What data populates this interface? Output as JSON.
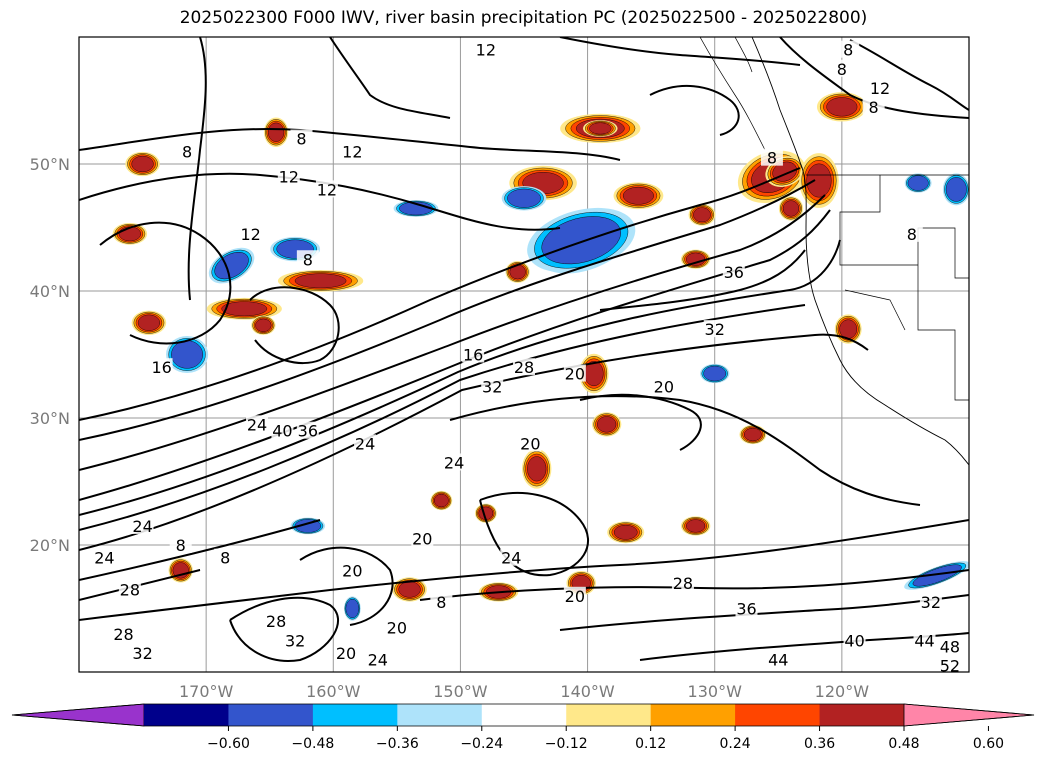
{
  "title": "2025022300 F000 IWV, river basin precipitation PC (2025022500 - 2025022800)",
  "map": {
    "lat_labels": [
      "50°N",
      "40°N",
      "30°N",
      "20°N"
    ],
    "lon_labels": [
      "170°W",
      "160°W",
      "150°W",
      "140°W",
      "130°W",
      "120°W"
    ],
    "projection_extent": {
      "lon": [
        -180,
        -110
      ],
      "lat": [
        10,
        60
      ]
    },
    "gridlines": true,
    "contour_variable": "IWV",
    "contour_labels": [
      {
        "text": "12",
        "lon": -148,
        "lat": 59
      },
      {
        "text": "8",
        "lon": -119.5,
        "lat": 59
      },
      {
        "text": "8",
        "lon": -120,
        "lat": 57.5
      },
      {
        "text": "12",
        "lon": -117,
        "lat": 56
      },
      {
        "text": "8",
        "lon": -117.5,
        "lat": 54.5
      },
      {
        "text": "8",
        "lon": -162.5,
        "lat": 52
      },
      {
        "text": "8",
        "lon": -171.5,
        "lat": 51
      },
      {
        "text": "12",
        "lon": -158.5,
        "lat": 51
      },
      {
        "text": "12",
        "lon": -163.5,
        "lat": 49
      },
      {
        "text": "12",
        "lon": -160.5,
        "lat": 48
      },
      {
        "text": "12",
        "lon": -166.5,
        "lat": 44.5
      },
      {
        "text": "8",
        "lon": -162,
        "lat": 42.5
      },
      {
        "text": "8",
        "lon": -125.5,
        "lat": 50.5
      },
      {
        "text": "8",
        "lon": -114.5,
        "lat": 44.5
      },
      {
        "text": "36",
        "lon": -128.5,
        "lat": 41.5
      },
      {
        "text": "32",
        "lon": -130,
        "lat": 37
      },
      {
        "text": "16",
        "lon": -173.5,
        "lat": 34
      },
      {
        "text": "16",
        "lon": -149,
        "lat": 35
      },
      {
        "text": "28",
        "lon": -145,
        "lat": 34
      },
      {
        "text": "32",
        "lon": -147.5,
        "lat": 32.5
      },
      {
        "text": "20",
        "lon": -141,
        "lat": 33.5
      },
      {
        "text": "20",
        "lon": -134,
        "lat": 32.5
      },
      {
        "text": "24",
        "lon": -166,
        "lat": 29.5
      },
      {
        "text": "40",
        "lon": -164,
        "lat": 29
      },
      {
        "text": "36",
        "lon": -162,
        "lat": 29
      },
      {
        "text": "24",
        "lon": -157.5,
        "lat": 28
      },
      {
        "text": "20",
        "lon": -144.5,
        "lat": 28
      },
      {
        "text": "24",
        "lon": -150.5,
        "lat": 26.5
      },
      {
        "text": "24",
        "lon": -175,
        "lat": 21.5
      },
      {
        "text": "8",
        "lon": -172,
        "lat": 20
      },
      {
        "text": "8",
        "lon": -168.5,
        "lat": 19
      },
      {
        "text": "20",
        "lon": -153,
        "lat": 20.5
      },
      {
        "text": "24",
        "lon": -146,
        "lat": 19
      },
      {
        "text": "20",
        "lon": -158.5,
        "lat": 18
      },
      {
        "text": "24",
        "lon": -178,
        "lat": 19
      },
      {
        "text": "28",
        "lon": -176,
        "lat": 16.5
      },
      {
        "text": "28",
        "lon": -132.5,
        "lat": 17
      },
      {
        "text": "36",
        "lon": -127.5,
        "lat": 15
      },
      {
        "text": "32",
        "lon": -113,
        "lat": 15.5
      },
      {
        "text": "20",
        "lon": -141,
        "lat": 16
      },
      {
        "text": "8",
        "lon": -151.5,
        "lat": 15.5
      },
      {
        "text": "28",
        "lon": -176.5,
        "lat": 13
      },
      {
        "text": "28",
        "lon": -164.5,
        "lat": 14
      },
      {
        "text": "32",
        "lon": -175,
        "lat": 11.5
      },
      {
        "text": "32",
        "lon": -163,
        "lat": 12.5
      },
      {
        "text": "20",
        "lon": -155,
        "lat": 13.5
      },
      {
        "text": "20",
        "lon": -159,
        "lat": 11.5
      },
      {
        "text": "24",
        "lon": -156.5,
        "lat": 11
      },
      {
        "text": "40",
        "lon": -119,
        "lat": 12.5
      },
      {
        "text": "44",
        "lon": -113.5,
        "lat": 12.5
      },
      {
        "text": "48",
        "lon": -111.5,
        "lat": 12
      },
      {
        "text": "52",
        "lon": -111.5,
        "lat": 10.5
      },
      {
        "text": "44",
        "lon": -125,
        "lat": 11
      }
    ]
  },
  "colorbar": {
    "colors": [
      "#9933cc",
      "#00008b",
      "#3355cc",
      "#00bfff",
      "#aee3fa",
      "#ffffff",
      "#ffe88a",
      "#ffa000",
      "#ff4500",
      "#b22222",
      "#ff85a8"
    ],
    "tick_labels": [
      "−0.60",
      "−0.48",
      "−0.36",
      "−0.24",
      "−0.12",
      "0.12",
      "0.24",
      "0.36",
      "0.48",
      "0.60"
    ],
    "extend": "both"
  },
  "patches": [
    {
      "lon": -140.5,
      "lat": 43.3,
      "rx": 3.3,
      "ry": 1.6,
      "rot": -15,
      "sign": "neg",
      "level": 3
    },
    {
      "lon": -140.8,
      "lat": 43.0,
      "rx": 2.0,
      "ry": 0.9,
      "rot": -15,
      "sign": "neg",
      "level": 4
    },
    {
      "lon": -140.5,
      "lat": 44.0,
      "rx": 4.2,
      "ry": 2.2,
      "rot": -15,
      "sign": "neg",
      "level": 2
    },
    {
      "lon": -125.5,
      "lat": 49.0,
      "rx": 2.6,
      "ry": 1.8,
      "rot": -20,
      "sign": "pos",
      "level": 3
    },
    {
      "lon": -124.5,
      "lat": 49.4,
      "rx": 1.4,
      "ry": 1.0,
      "rot": -20,
      "sign": "pos",
      "level": 4
    },
    {
      "lon": -121.8,
      "lat": 48.7,
      "rx": 1.4,
      "ry": 2.0,
      "rot": 0,
      "sign": "pos",
      "level": 3
    },
    {
      "lon": -143.5,
      "lat": 48.5,
      "rx": 2.5,
      "ry": 1.2,
      "rot": 0,
      "sign": "pos",
      "level": 3
    },
    {
      "lon": -139.0,
      "lat": 52.8,
      "rx": 3.0,
      "ry": 1.0,
      "rot": 0,
      "sign": "pos",
      "level": 3
    },
    {
      "lon": -139.0,
      "lat": 52.8,
      "rx": 1.2,
      "ry": 0.5,
      "rot": 0,
      "sign": "pos",
      "level": 4
    },
    {
      "lon": -167.0,
      "lat": 38.6,
      "rx": 2.8,
      "ry": 0.7,
      "rot": 0,
      "sign": "pos",
      "level": 3
    },
    {
      "lon": -161.0,
      "lat": 40.8,
      "rx": 3.2,
      "ry": 0.7,
      "rot": 0,
      "sign": "pos",
      "level": 3
    },
    {
      "lon": -174.5,
      "lat": 37.5,
      "rx": 1.2,
      "ry": 0.8,
      "rot": 0,
      "sign": "pos",
      "level": 3
    },
    {
      "lon": -136.0,
      "lat": 47.5,
      "rx": 1.8,
      "ry": 0.9,
      "rot": 0,
      "sign": "pos",
      "level": 3
    },
    {
      "lon": -145.0,
      "lat": 47.3,
      "rx": 1.6,
      "ry": 0.8,
      "rot": 0,
      "sign": "neg",
      "level": 2
    },
    {
      "lon": -139.5,
      "lat": 33.5,
      "rx": 1.0,
      "ry": 1.4,
      "rot": 0,
      "sign": "pos",
      "level": 3
    },
    {
      "lon": -137.0,
      "lat": 21.0,
      "rx": 1.3,
      "ry": 0.7,
      "rot": 0,
      "sign": "pos",
      "level": 3
    },
    {
      "lon": -154.0,
      "lat": 16.5,
      "rx": 1.2,
      "ry": 0.8,
      "rot": 0,
      "sign": "pos",
      "level": 3
    },
    {
      "lon": -147.0,
      "lat": 16.3,
      "rx": 1.4,
      "ry": 0.6,
      "rot": 0,
      "sign": "pos",
      "level": 3
    },
    {
      "lon": -140.5,
      "lat": 17.0,
      "rx": 1.0,
      "ry": 0.8,
      "rot": 0,
      "sign": "pos",
      "level": 3
    },
    {
      "lon": -144.0,
      "lat": 26.0,
      "rx": 1.0,
      "ry": 1.4,
      "rot": 0,
      "sign": "pos",
      "level": 3
    },
    {
      "lon": -138.5,
      "lat": 29.5,
      "rx": 1.0,
      "ry": 0.8,
      "rot": 0,
      "sign": "pos",
      "level": 3
    },
    {
      "lon": -119.5,
      "lat": 37.0,
      "rx": 0.9,
      "ry": 1.0,
      "rot": 0,
      "sign": "pos",
      "level": 3
    },
    {
      "lon": -120.0,
      "lat": 54.5,
      "rx": 1.8,
      "ry": 1.0,
      "rot": 0,
      "sign": "pos",
      "level": 4
    },
    {
      "lon": -171.5,
      "lat": 35.0,
      "rx": 1.5,
      "ry": 1.3,
      "rot": 0,
      "sign": "neg",
      "level": 2
    },
    {
      "lon": -163.0,
      "lat": 43.3,
      "rx": 1.8,
      "ry": 0.8,
      "rot": 0,
      "sign": "neg",
      "level": 2
    },
    {
      "lon": -112.5,
      "lat": 17.6,
      "rx": 2.6,
      "ry": 0.5,
      "rot": -20,
      "sign": "neg",
      "level": 2
    },
    {
      "lon": -153.5,
      "lat": 46.5,
      "rx": 1.6,
      "ry": 0.5,
      "rot": 0,
      "sign": "neg",
      "level": 2
    },
    {
      "lon": -168.0,
      "lat": 42.0,
      "rx": 1.8,
      "ry": 1.0,
      "rot": -30,
      "sign": "neg",
      "level": 2
    },
    {
      "lon": -176.0,
      "lat": 44.5,
      "rx": 1.2,
      "ry": 0.7,
      "rot": 0,
      "sign": "pos",
      "level": 3
    },
    {
      "lon": -175.0,
      "lat": 50.0,
      "rx": 1.2,
      "ry": 0.8,
      "rot": 0,
      "sign": "pos",
      "level": 3
    },
    {
      "lon": -164.5,
      "lat": 52.5,
      "rx": 0.8,
      "ry": 1.0,
      "rot": 0,
      "sign": "pos",
      "level": 3
    },
    {
      "lon": -130.0,
      "lat": 33.5,
      "rx": 1.0,
      "ry": 0.6,
      "rot": 0,
      "sign": "neg",
      "level": 2
    },
    {
      "lon": -145.5,
      "lat": 41.5,
      "rx": 0.8,
      "ry": 0.7,
      "rot": 0,
      "sign": "pos",
      "level": 3
    },
    {
      "lon": -131.5,
      "lat": 42.5,
      "rx": 1.0,
      "ry": 0.6,
      "rot": 0,
      "sign": "pos",
      "level": 3
    },
    {
      "lon": -131.0,
      "lat": 46.0,
      "rx": 0.9,
      "ry": 0.7,
      "rot": 0,
      "sign": "pos",
      "level": 3
    },
    {
      "lon": -124.0,
      "lat": 46.5,
      "rx": 0.8,
      "ry": 0.8,
      "rot": 0,
      "sign": "pos",
      "level": 3
    },
    {
      "lon": -162.0,
      "lat": 21.5,
      "rx": 1.2,
      "ry": 0.5,
      "rot": 0,
      "sign": "neg",
      "level": 2
    },
    {
      "lon": -172.0,
      "lat": 18.0,
      "rx": 0.8,
      "ry": 0.8,
      "rot": 0,
      "sign": "pos",
      "level": 3
    },
    {
      "lon": -165.5,
      "lat": 37.3,
      "rx": 0.8,
      "ry": 0.6,
      "rot": 0,
      "sign": "pos",
      "level": 3
    },
    {
      "lon": -114.0,
      "lat": 48.5,
      "rx": 0.9,
      "ry": 0.6,
      "rot": 0,
      "sign": "neg",
      "level": 2
    },
    {
      "lon": -111.0,
      "lat": 48.0,
      "rx": 0.9,
      "ry": 1.1,
      "rot": 0,
      "sign": "neg",
      "level": 2
    },
    {
      "lon": -131.5,
      "lat": 21.5,
      "rx": 1.0,
      "ry": 0.6,
      "rot": 0,
      "sign": "pos",
      "level": 3
    },
    {
      "lon": -127.0,
      "lat": 28.7,
      "rx": 0.9,
      "ry": 0.6,
      "rot": 0,
      "sign": "pos",
      "level": 3
    },
    {
      "lon": -151.5,
      "lat": 23.5,
      "rx": 0.7,
      "ry": 0.6,
      "rot": 0,
      "sign": "pos",
      "level": 3
    },
    {
      "lon": -148.0,
      "lat": 22.5,
      "rx": 0.7,
      "ry": 0.6,
      "rot": 0,
      "sign": "pos",
      "level": 3
    },
    {
      "lon": -158.5,
      "lat": 15.0,
      "rx": 0.5,
      "ry": 0.8,
      "rot": 0,
      "sign": "neg",
      "level": 2
    }
  ]
}
